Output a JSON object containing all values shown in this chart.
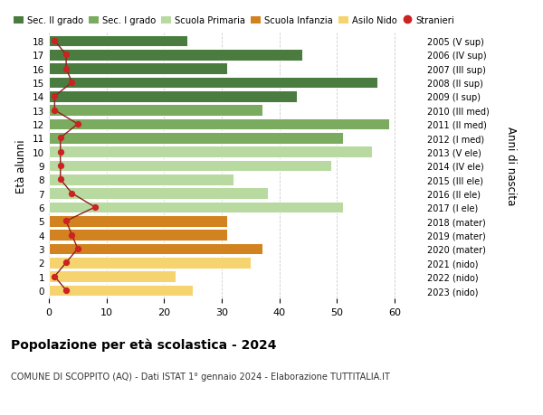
{
  "ages": [
    18,
    17,
    16,
    15,
    14,
    13,
    12,
    11,
    10,
    9,
    8,
    7,
    6,
    5,
    4,
    3,
    2,
    1,
    0
  ],
  "years": [
    "2005 (V sup)",
    "2006 (IV sup)",
    "2007 (III sup)",
    "2008 (II sup)",
    "2009 (I sup)",
    "2010 (III med)",
    "2011 (II med)",
    "2012 (I med)",
    "2013 (V ele)",
    "2014 (IV ele)",
    "2015 (III ele)",
    "2016 (II ele)",
    "2017 (I ele)",
    "2018 (mater)",
    "2019 (mater)",
    "2020 (mater)",
    "2021 (nido)",
    "2022 (nido)",
    "2023 (nido)"
  ],
  "values": [
    24,
    44,
    31,
    57,
    43,
    37,
    59,
    51,
    56,
    49,
    32,
    38,
    51,
    31,
    31,
    37,
    35,
    22,
    25
  ],
  "stranieri": [
    1,
    3,
    3,
    4,
    1,
    1,
    5,
    2,
    2,
    2,
    2,
    4,
    8,
    3,
    4,
    5,
    3,
    1,
    3
  ],
  "colors": {
    "sec2": "#4a7c3f",
    "sec1": "#7aab5e",
    "primaria": "#b8d9a0",
    "infanzia": "#d2821e",
    "nido": "#f5d36e",
    "stranieri_line": "#8b2020",
    "stranieri_dot": "#cc2222"
  },
  "bar_colors_keys": [
    "sec2",
    "sec2",
    "sec2",
    "sec2",
    "sec2",
    "sec1",
    "sec1",
    "sec1",
    "primaria",
    "primaria",
    "primaria",
    "primaria",
    "primaria",
    "infanzia",
    "infanzia",
    "infanzia",
    "nido",
    "nido",
    "nido"
  ],
  "legend_labels": [
    "Sec. II grado",
    "Sec. I grado",
    "Scuola Primaria",
    "Scuola Infanzia",
    "Asilo Nido",
    "Stranieri"
  ],
  "legend_color_keys": [
    "sec2",
    "sec1",
    "primaria",
    "infanzia",
    "nido",
    "stranieri_dot"
  ],
  "ylabel": "Età alunni",
  "right_label": "Anni di nascita",
  "title": "Popolazione per età scolastica - 2024",
  "subtitle": "COMUNE DI SCOPPITO (AQ) - Dati ISTAT 1° gennaio 2024 - Elaborazione TUTTITALIA.IT",
  "xlim": [
    0,
    65
  ],
  "ylim": [
    -0.6,
    18.6
  ],
  "xticks": [
    0,
    10,
    20,
    30,
    40,
    50,
    60
  ],
  "figsize": [
    6.0,
    4.6
  ],
  "dpi": 100
}
